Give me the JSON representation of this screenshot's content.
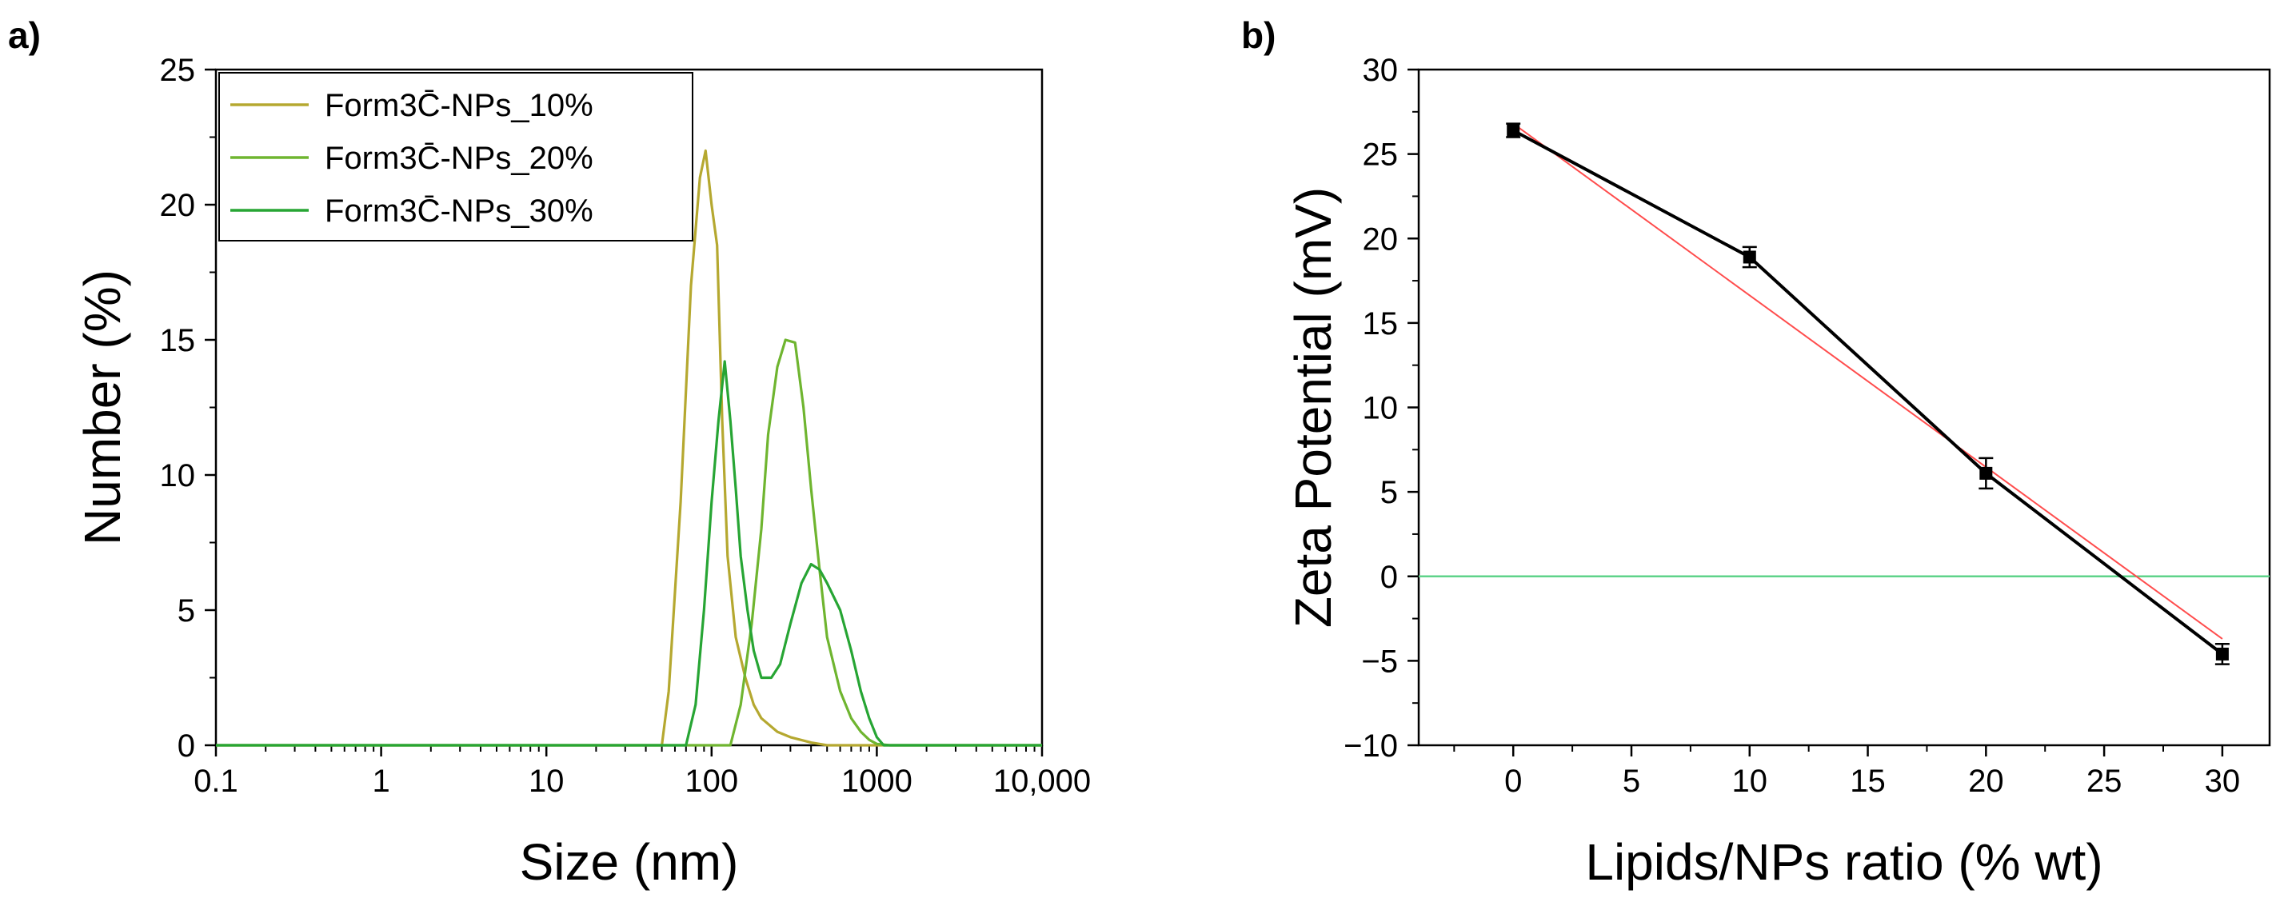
{
  "chart_data": [
    {
      "panel_label": "a)",
      "type": "line",
      "x_scale": "log",
      "xlabel": "Size (nm)",
      "ylabel": "Number (%)",
      "xlim": [
        0.1,
        10000
      ],
      "ylim": [
        0,
        25
      ],
      "x_ticks": [
        0.1,
        1,
        10,
        100,
        1000,
        10000
      ],
      "x_tick_labels": [
        "0.1",
        "1",
        "10",
        "100",
        "1000",
        "10,000"
      ],
      "y_ticks": [
        0,
        5,
        10,
        15,
        20,
        25
      ],
      "y_tick_labels": [
        "0",
        "5",
        "10",
        "15",
        "20",
        "25"
      ],
      "legend_position": "top-left",
      "series": [
        {
          "name": "Form3C̄-NPs_10%",
          "color": "#b5a830",
          "x": [
            0.1,
            10,
            50,
            55,
            65,
            75,
            85,
            92,
            100,
            108,
            116,
            125,
            140,
            160,
            180,
            200,
            250,
            300,
            400,
            500,
            1000,
            10000
          ],
          "y": [
            0,
            0,
            0,
            2,
            9,
            17,
            21,
            22,
            20,
            18.5,
            12,
            7,
            4,
            2.5,
            1.5,
            1,
            0.5,
            0.3,
            0.1,
            0,
            0,
            0
          ]
        },
        {
          "name": "Form3C̄-NPs_20%",
          "color": "#6fb530",
          "x": [
            0.1,
            100,
            110,
            130,
            150,
            175,
            200,
            220,
            250,
            280,
            320,
            360,
            400,
            450,
            500,
            600,
            700,
            800,
            900,
            1000,
            1200,
            10000
          ],
          "y": [
            0,
            0,
            0,
            0,
            1.5,
            4.5,
            8,
            11.5,
            14,
            15,
            14.9,
            12.5,
            9.5,
            6.5,
            4,
            2,
            1,
            0.5,
            0.2,
            0.05,
            0,
            0
          ]
        },
        {
          "name": "Form3C̄-NPs_30%",
          "color": "#27a534",
          "x": [
            0.1,
            60,
            70,
            80,
            90,
            100,
            110,
            120,
            130,
            140,
            150,
            165,
            180,
            200,
            230,
            260,
            300,
            350,
            400,
            450,
            500,
            600,
            700,
            800,
            900,
            1000,
            1100,
            1200,
            10000
          ],
          "y": [
            0,
            0,
            0,
            1.5,
            5,
            9,
            12,
            14.2,
            12,
            9.5,
            7,
            5,
            3.5,
            2.5,
            2.5,
            3,
            4.5,
            6,
            6.7,
            6.5,
            6,
            5,
            3.5,
            2,
            1,
            0.3,
            0,
            0,
            0
          ]
        }
      ]
    },
    {
      "panel_label": "b)",
      "type": "scatter",
      "xlabel": "Lipids/NPs ratio (% wt)",
      "ylabel": "Zeta Potential (mV)",
      "xlim": [
        -4,
        32
      ],
      "ylim": [
        -10,
        30
      ],
      "x_ticks": [
        0,
        5,
        10,
        15,
        20,
        25,
        30
      ],
      "x_tick_labels": [
        "0",
        "5",
        "10",
        "15",
        "20",
        "25",
        "30"
      ],
      "y_ticks": [
        -10,
        -5,
        0,
        5,
        10,
        15,
        20,
        25,
        30
      ],
      "y_tick_labels": [
        "−10",
        "−5",
        "0",
        "5",
        "10",
        "15",
        "20",
        "25",
        "30"
      ],
      "series": [
        {
          "name": "Zeta Potential",
          "color": "#000000",
          "x": [
            0,
            10,
            20,
            30
          ],
          "y": [
            26.4,
            18.9,
            6.1,
            -4.6
          ],
          "error": [
            0.4,
            0.6,
            0.9,
            0.6
          ]
        }
      ],
      "fit_line": {
        "color": "#ff4d4d",
        "x": [
          0,
          30
        ],
        "y": [
          26.8,
          -3.7
        ]
      },
      "reference_line": {
        "color": "#5fd38a",
        "y": 0
      }
    }
  ]
}
